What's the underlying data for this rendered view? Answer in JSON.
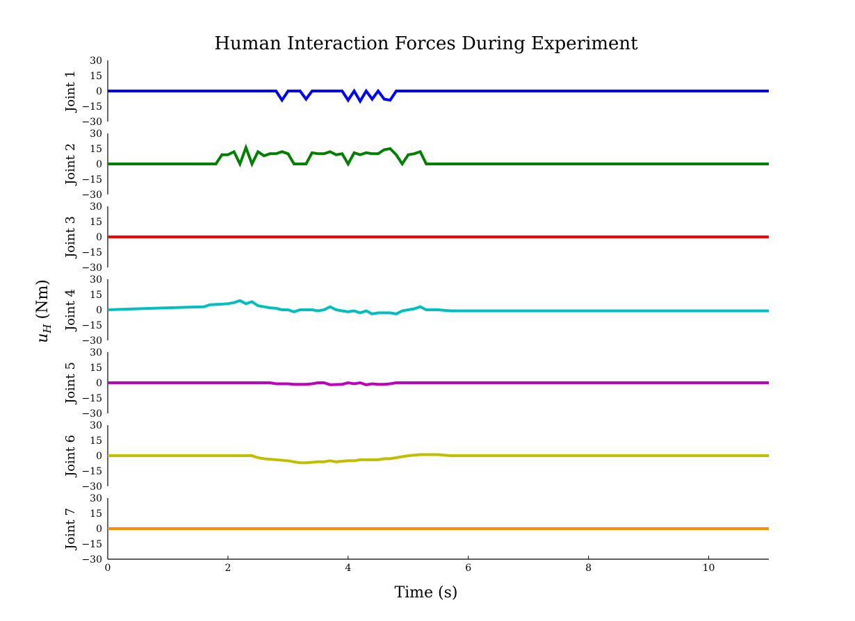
{
  "chart_data": {
    "type": "line",
    "title": "Human Interaction Forces During Experiment",
    "xlabel": "Time (s)",
    "ylabel": "u_H (Nm)",
    "ylabel_main": "u",
    "ylabel_sub": "H",
    "ylabel_unit": " (Nm)",
    "xlim": [
      0,
      11
    ],
    "ylim": [
      -30,
      30
    ],
    "x_ticks": [
      0,
      2,
      4,
      6,
      8,
      10
    ],
    "y_ticks": [
      30,
      15,
      0,
      -15,
      -30
    ],
    "y_tick_labels": [
      "30",
      "15",
      "0",
      "−15",
      "−30"
    ],
    "grid": false,
    "legend": "none",
    "series": [
      {
        "name": "Joint 1",
        "color": "#0000ff",
        "x": [
          0,
          2.8,
          2.9,
          3.0,
          3.2,
          3.3,
          3.4,
          3.9,
          4.0,
          4.1,
          4.2,
          4.3,
          4.4,
          4.5,
          4.6,
          4.7,
          4.8,
          11
        ],
        "y": [
          0,
          0,
          -9,
          0,
          0,
          -8,
          0,
          0,
          -9,
          0,
          -10,
          0,
          -8,
          0,
          -8,
          -9,
          0,
          0
        ]
      },
      {
        "name": "Joint 2",
        "color": "#008000",
        "x": [
          0,
          1.8,
          1.9,
          2.0,
          2.1,
          2.2,
          2.3,
          2.4,
          2.5,
          2.6,
          2.7,
          2.8,
          2.9,
          3.0,
          3.1,
          3.2,
          3.3,
          3.4,
          3.5,
          3.6,
          3.7,
          3.8,
          3.9,
          4.0,
          4.1,
          4.2,
          4.3,
          4.4,
          4.5,
          4.6,
          4.7,
          4.8,
          4.9,
          5.0,
          5.1,
          5.2,
          5.3,
          11
        ],
        "y": [
          0,
          0,
          9,
          9,
          12,
          0,
          16,
          0,
          12,
          8,
          10,
          10,
          12,
          10,
          0,
          0,
          0,
          11,
          10,
          10,
          12,
          9,
          10,
          0,
          11,
          9,
          11,
          10,
          10,
          14,
          15,
          9,
          0,
          9,
          10,
          12,
          0,
          0
        ]
      },
      {
        "name": "Joint 3",
        "color": "#ff0000",
        "x": [
          0,
          11
        ],
        "y": [
          0,
          0
        ]
      },
      {
        "name": "Joint 4",
        "color": "#00bfbf",
        "x": [
          0,
          0.5,
          1.0,
          1.6,
          1.7,
          1.9,
          2.0,
          2.1,
          2.2,
          2.3,
          2.4,
          2.5,
          2.7,
          2.8,
          2.9,
          3.0,
          3.1,
          3.2,
          3.4,
          3.5,
          3.6,
          3.7,
          3.8,
          3.9,
          4.0,
          4.1,
          4.2,
          4.3,
          4.4,
          4.5,
          4.6,
          4.7,
          4.8,
          4.9,
          5.0,
          5.1,
          5.2,
          5.3,
          5.5,
          5.7,
          6.5,
          11
        ],
        "y": [
          0,
          1,
          2,
          3,
          5,
          5.5,
          6,
          7,
          9,
          6,
          8,
          4,
          2,
          1.5,
          0,
          0,
          -2,
          0,
          0,
          -1,
          0,
          3,
          0,
          -1,
          -2,
          -1,
          -3,
          -1,
          -4,
          -3,
          -3,
          -3,
          -4,
          -1,
          0,
          1,
          3,
          0,
          0,
          -1,
          -1,
          -1
        ]
      },
      {
        "name": "Joint 5",
        "color": "#bf00bf",
        "x": [
          0,
          2.7,
          2.8,
          3.0,
          3.1,
          3.3,
          3.4,
          3.5,
          3.6,
          3.7,
          3.9,
          4.0,
          4.1,
          4.2,
          4.3,
          4.4,
          4.5,
          4.6,
          4.7,
          4.8,
          11
        ],
        "y": [
          0,
          0,
          -1,
          -1,
          -1.5,
          -1.5,
          -1,
          0,
          0,
          -2,
          -1.5,
          0,
          -1,
          0,
          -2,
          -1,
          -1.5,
          -1.5,
          -1,
          0,
          0
        ]
      },
      {
        "name": "Joint 6",
        "color": "#bfbf00",
        "x": [
          0,
          2.4,
          2.5,
          2.6,
          2.8,
          3.0,
          3.1,
          3.2,
          3.3,
          3.5,
          3.6,
          3.7,
          3.8,
          4.0,
          4.1,
          4.2,
          4.3,
          4.5,
          4.6,
          4.7,
          4.8,
          5.0,
          5.2,
          5.5,
          5.7,
          11
        ],
        "y": [
          0,
          0,
          -2,
          -3,
          -4,
          -5,
          -6,
          -7,
          -7,
          -6,
          -6,
          -5,
          -6,
          -5,
          -5,
          -4,
          -4,
          -4,
          -3,
          -3,
          -2,
          0,
          1,
          1,
          0,
          0
        ]
      },
      {
        "name": "Joint 7",
        "color": "#ff8c00",
        "x": [
          0,
          11
        ],
        "y": [
          0,
          0
        ]
      }
    ]
  }
}
